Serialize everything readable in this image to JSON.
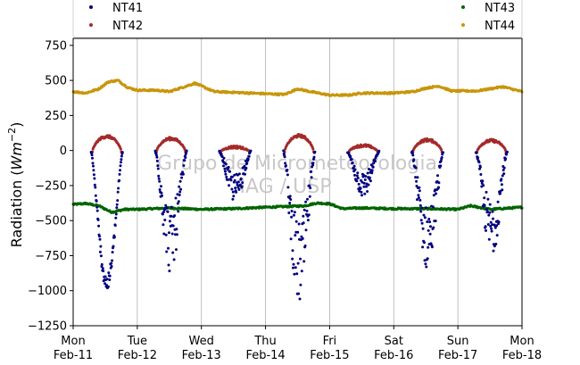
{
  "chart_data": {
    "type": "scatter",
    "title": "",
    "ylabel_prefix": "Radiation (",
    "ylabel_unit": "Wm",
    "ylabel_exp": "−2",
    "ylabel_suffix": ")",
    "xlabel": "",
    "ylim": [
      -1250,
      800
    ],
    "xlim_days": [
      0,
      7
    ],
    "yticks": [
      {
        "value": 750,
        "label": "750"
      },
      {
        "value": 500,
        "label": "500"
      },
      {
        "value": 250,
        "label": "250"
      },
      {
        "value": 0,
        "label": "0"
      },
      {
        "value": -250,
        "label": "−250"
      },
      {
        "value": -500,
        "label": "−500"
      },
      {
        "value": -750,
        "label": "−750"
      },
      {
        "value": -1000,
        "label": "−1000"
      },
      {
        "value": -1250,
        "label": "−1250"
      }
    ],
    "xticks": [
      {
        "day": 0,
        "line1": "Mon",
        "line2": "Feb-11"
      },
      {
        "day": 1,
        "line1": "Tue",
        "line2": "Feb-12"
      },
      {
        "day": 2,
        "line1": "Wed",
        "line2": "Feb-13"
      },
      {
        "day": 3,
        "line1": "Thu",
        "line2": "Feb-14"
      },
      {
        "day": 4,
        "line1": "Fri",
        "line2": "Feb-15"
      },
      {
        "day": 5,
        "line1": "Sat",
        "line2": "Feb-16"
      },
      {
        "day": 6,
        "line1": "Sun",
        "line2": "Feb-17"
      },
      {
        "day": 7,
        "line1": "Mon",
        "line2": "Feb-18"
      }
    ],
    "grid": "vertical",
    "legend_position": "top",
    "watermark": [
      "Grupo de Micrometeorologia",
      "IAG / USP"
    ],
    "series": [
      {
        "name": "NT41",
        "color": "#00007f",
        "kind": "daytime_dips",
        "days": [
          {
            "day": 0,
            "min": -1000
          },
          {
            "day": 1,
            "min": -870
          },
          {
            "day": 2,
            "min": -360
          },
          {
            "day": 3,
            "min": -1110
          },
          {
            "day": 4,
            "min": -330
          },
          {
            "day": 5,
            "min": -850
          },
          {
            "day": 6,
            "min": -760
          }
        ]
      },
      {
        "name": "NT42",
        "color": "#a52a2a",
        "kind": "daytime_peaks",
        "days": [
          {
            "day": 0,
            "max": 110
          },
          {
            "day": 1,
            "max": 95
          },
          {
            "day": 2,
            "max": 35
          },
          {
            "day": 3,
            "max": 115
          },
          {
            "day": 4,
            "max": 45
          },
          {
            "day": 5,
            "max": 85
          },
          {
            "day": 6,
            "max": 80
          }
        ]
      },
      {
        "name": "NT43",
        "color": "#006400",
        "kind": "continuous",
        "x_days": [
          0,
          0.2,
          0.4,
          0.6,
          0.8,
          1.0,
          1.5,
          2.0,
          2.5,
          3.0,
          3.3,
          3.6,
          3.8,
          4.0,
          4.2,
          4.5,
          5.0,
          5.5,
          6.0,
          6.2,
          6.5,
          7.0
        ],
        "values": [
          -385,
          -378,
          -395,
          -440,
          -420,
          -420,
          -410,
          -420,
          -415,
          -405,
          -400,
          -395,
          -375,
          -380,
          -415,
          -410,
          -415,
          -415,
          -420,
          -395,
          -420,
          -405
        ]
      },
      {
        "name": "NT44",
        "color": "#c8960a",
        "kind": "continuous",
        "x_days": [
          0,
          0.2,
          0.4,
          0.55,
          0.7,
          0.85,
          1.0,
          1.3,
          1.5,
          1.7,
          1.9,
          2.2,
          2.5,
          3.0,
          3.3,
          3.5,
          3.7,
          4.0,
          4.3,
          4.5,
          5.0,
          5.3,
          5.5,
          5.7,
          5.9,
          6.3,
          6.5,
          6.7,
          7.0
        ],
        "values": [
          420,
          410,
          440,
          490,
          500,
          450,
          430,
          430,
          420,
          450,
          480,
          420,
          415,
          405,
          400,
          440,
          420,
          395,
          395,
          410,
          410,
          420,
          445,
          460,
          425,
          425,
          440,
          455,
          420
        ]
      }
    ]
  }
}
